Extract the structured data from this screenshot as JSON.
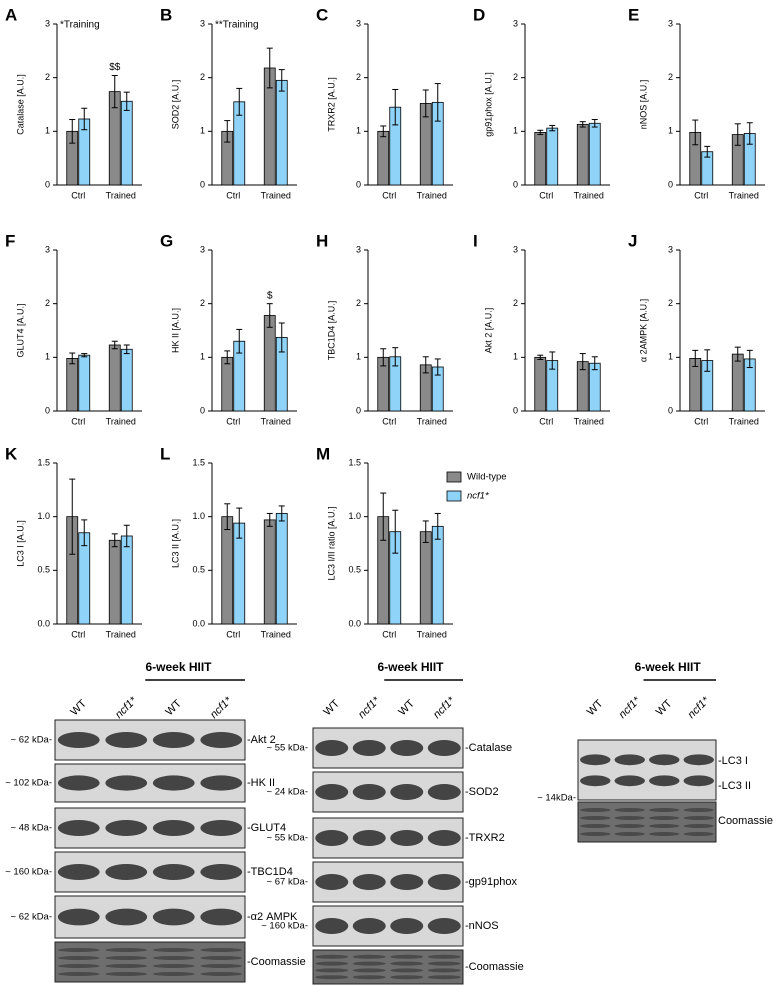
{
  "chart_data": [
    {
      "type": "bar",
      "panel": "A",
      "ylabel": "Catalase [A.U.]",
      "annotation": "*Training",
      "bar_annotation": "$$",
      "categories": [
        "Ctrl",
        "Trained"
      ],
      "ylim": [
        0,
        3
      ],
      "yticks": [
        0,
        1,
        2,
        3
      ],
      "series": [
        {
          "color": "#8a8a8a",
          "values": [
            1.0,
            1.74
          ],
          "errors": [
            0.22,
            0.3
          ]
        },
        {
          "color": "#8fd3f8",
          "values": [
            1.23,
            1.56
          ],
          "errors": [
            0.2,
            0.17
          ]
        }
      ]
    },
    {
      "type": "bar",
      "panel": "B",
      "ylabel": "SOD2 [A.U.]",
      "annotation": "**Training",
      "categories": [
        "Ctrl",
        "Trained"
      ],
      "ylim": [
        0,
        3
      ],
      "yticks": [
        0,
        1,
        2,
        3
      ],
      "series": [
        {
          "color": "#8a8a8a",
          "values": [
            1.0,
            2.18
          ],
          "errors": [
            0.2,
            0.37
          ]
        },
        {
          "color": "#8fd3f8",
          "values": [
            1.55,
            1.95
          ],
          "errors": [
            0.25,
            0.2
          ]
        }
      ]
    },
    {
      "type": "bar",
      "panel": "C",
      "ylabel": "TRXR2 [A.U.]",
      "categories": [
        "Ctrl",
        "Trained"
      ],
      "ylim": [
        0,
        3
      ],
      "yticks": [
        0,
        1,
        2,
        3
      ],
      "series": [
        {
          "color": "#8a8a8a",
          "values": [
            1.0,
            1.52
          ],
          "errors": [
            0.1,
            0.25
          ]
        },
        {
          "color": "#8fd3f8",
          "values": [
            1.45,
            1.54
          ],
          "errors": [
            0.33,
            0.35
          ]
        }
      ]
    },
    {
      "type": "bar",
      "panel": "D",
      "ylabel": "gp91phox [A.U.]",
      "categories": [
        "Ctrl",
        "Trained"
      ],
      "ylim": [
        0,
        3
      ],
      "yticks": [
        0,
        1,
        2,
        3
      ],
      "series": [
        {
          "color": "#8a8a8a",
          "values": [
            0.98,
            1.13
          ],
          "errors": [
            0.04,
            0.05
          ]
        },
        {
          "color": "#8fd3f8",
          "values": [
            1.06,
            1.15
          ],
          "errors": [
            0.05,
            0.07
          ]
        }
      ]
    },
    {
      "type": "bar",
      "panel": "E",
      "ylabel": "nNOS [A.U.]",
      "categories": [
        "Ctrl",
        "Trained"
      ],
      "ylim": [
        0,
        3
      ],
      "yticks": [
        0,
        1,
        2,
        3
      ],
      "series": [
        {
          "color": "#8a8a8a",
          "values": [
            0.98,
            0.94
          ],
          "errors": [
            0.23,
            0.2
          ]
        },
        {
          "color": "#8fd3f8",
          "values": [
            0.62,
            0.96
          ],
          "errors": [
            0.1,
            0.2
          ]
        }
      ]
    },
    {
      "type": "bar",
      "panel": "F",
      "ylabel": "GLUT4 [A.U.]",
      "categories": [
        "Ctrl",
        "Trained"
      ],
      "ylim": [
        0,
        3
      ],
      "yticks": [
        0,
        1,
        2,
        3
      ],
      "series": [
        {
          "color": "#8a8a8a",
          "values": [
            0.98,
            1.23
          ],
          "errors": [
            0.1,
            0.07
          ]
        },
        {
          "color": "#8fd3f8",
          "values": [
            1.04,
            1.15
          ],
          "errors": [
            0.03,
            0.08
          ]
        }
      ]
    },
    {
      "type": "bar",
      "panel": "G",
      "ylabel": "HK II [A.U.]",
      "bar_annotation": "$",
      "categories": [
        "Ctrl",
        "Trained"
      ],
      "ylim": [
        0,
        3
      ],
      "yticks": [
        0,
        1,
        2,
        3
      ],
      "series": [
        {
          "color": "#8a8a8a",
          "values": [
            1.0,
            1.78
          ],
          "errors": [
            0.12,
            0.22
          ]
        },
        {
          "color": "#8fd3f8",
          "values": [
            1.3,
            1.37
          ],
          "errors": [
            0.22,
            0.27
          ]
        }
      ]
    },
    {
      "type": "bar",
      "panel": "H",
      "ylabel": "TBC1D4 [A.U.]",
      "categories": [
        "Ctrl",
        "Trained"
      ],
      "ylim": [
        0,
        3
      ],
      "yticks": [
        0,
        1,
        2,
        3
      ],
      "series": [
        {
          "color": "#8a8a8a",
          "values": [
            1.0,
            0.86
          ],
          "errors": [
            0.16,
            0.15
          ]
        },
        {
          "color": "#8fd3f8",
          "values": [
            1.01,
            0.82
          ],
          "errors": [
            0.17,
            0.15
          ]
        }
      ]
    },
    {
      "type": "bar",
      "panel": "I",
      "ylabel": "Akt 2 [A.U.]",
      "categories": [
        "Ctrl",
        "Trained"
      ],
      "ylim": [
        0,
        3
      ],
      "yticks": [
        0,
        1,
        2,
        3
      ],
      "series": [
        {
          "color": "#8a8a8a",
          "values": [
            1.0,
            0.92
          ],
          "errors": [
            0.04,
            0.15
          ]
        },
        {
          "color": "#8fd3f8",
          "values": [
            0.94,
            0.89
          ],
          "errors": [
            0.16,
            0.12
          ]
        }
      ]
    },
    {
      "type": "bar",
      "panel": "J",
      "ylabel": "α 2AMPK [A.U.]",
      "categories": [
        "Ctrl",
        "Trained"
      ],
      "ylim": [
        0,
        3
      ],
      "yticks": [
        0,
        1,
        2,
        3
      ],
      "series": [
        {
          "color": "#8a8a8a",
          "values": [
            0.98,
            1.06
          ],
          "errors": [
            0.15,
            0.13
          ]
        },
        {
          "color": "#8fd3f8",
          "values": [
            0.94,
            0.97
          ],
          "errors": [
            0.2,
            0.16
          ]
        }
      ]
    },
    {
      "type": "bar",
      "panel": "K",
      "ylabel": "LC3 I [A.U.]",
      "categories": [
        "Ctrl",
        "Trained"
      ],
      "ylim": [
        0,
        1.5
      ],
      "yticks": [
        {
          "value": 0,
          "label": "0.0"
        },
        {
          "value": 0.5,
          "label": "0.5"
        },
        {
          "value": 1,
          "label": "1.0"
        },
        {
          "value": 1.5,
          "label": "1.5"
        }
      ],
      "series": [
        {
          "color": "#8a8a8a",
          "values": [
            1.0,
            0.78
          ],
          "errors": [
            0.35,
            0.06
          ]
        },
        {
          "color": "#8fd3f8",
          "values": [
            0.85,
            0.82
          ],
          "errors": [
            0.12,
            0.1
          ]
        }
      ]
    },
    {
      "type": "bar",
      "panel": "L",
      "ylabel": "LC3 II [A.U.]",
      "categories": [
        "Ctrl",
        "Trained"
      ],
      "ylim": [
        0,
        1.5
      ],
      "yticks": [
        {
          "value": 0,
          "label": "0.0"
        },
        {
          "value": 0.5,
          "label": "0.5"
        },
        {
          "value": 1,
          "label": "1.0"
        },
        {
          "value": 1.5,
          "label": "1.5"
        }
      ],
      "series": [
        {
          "color": "#8a8a8a",
          "values": [
            1.0,
            0.97
          ],
          "errors": [
            0.12,
            0.06
          ]
        },
        {
          "color": "#8fd3f8",
          "values": [
            0.94,
            1.03
          ],
          "errors": [
            0.14,
            0.07
          ]
        }
      ]
    },
    {
      "type": "bar",
      "panel": "M",
      "ylabel": "LC3 I/II ratio [A.U.]",
      "categories": [
        "Ctrl",
        "Trained"
      ],
      "ylim": [
        0,
        1.5
      ],
      "yticks": [
        {
          "value": 0,
          "label": "0.0"
        },
        {
          "value": 0.5,
          "label": "0.5"
        },
        {
          "value": 1,
          "label": "1.0"
        },
        {
          "value": 1.5,
          "label": "1.5"
        }
      ],
      "series": [
        {
          "color": "#8a8a8a",
          "values": [
            1.0,
            0.86
          ],
          "errors": [
            0.22,
            0.1
          ]
        },
        {
          "color": "#8fd3f8",
          "values": [
            0.86,
            0.91
          ],
          "errors": [
            0.2,
            0.12
          ]
        }
      ]
    }
  ],
  "legend": [
    {
      "name": "Wild-type",
      "color": "#8a8a8a"
    },
    {
      "name": "ncf1*",
      "color": "#8fd3f8"
    }
  ],
  "blots": [
    {
      "header": "6-week HIIT",
      "lanes": [
        "WT",
        "ncf1*",
        "WT",
        "ncf1*"
      ],
      "rows": [
        {
          "kda": "~ 62 kDa-",
          "label": "-Akt 2"
        },
        {
          "kda": "~ 102 kDa-",
          "label": "-HK II"
        },
        {
          "kda": "~ 48 kDa-",
          "label": "-GLUT4"
        },
        {
          "kda": "~ 160 kDa-",
          "label": "-TBC1D4"
        },
        {
          "kda": "~ 62 kDa-",
          "label": "-α2 AMPK"
        },
        {
          "label": "-Coomassie"
        }
      ]
    },
    {
      "header": "6-week HIIT",
      "lanes": [
        "WT",
        "ncf1*",
        "WT",
        "ncf1*"
      ],
      "rows": [
        {
          "kda": "~ 55 kDa-",
          "label": "-Catalase"
        },
        {
          "kda": "~ 24 kDa-",
          "label": "-SOD2"
        },
        {
          "kda": "~ 55 kDa-",
          "label": "-TRXR2"
        },
        {
          "kda": "~ 67 kDa-",
          "label": "-gp91phox"
        },
        {
          "kda": "~ 160 kDa-",
          "label": "-nNOS"
        },
        {
          "label": "-Coomassie"
        }
      ]
    },
    {
      "header": "6-week HIIT",
      "lanes": [
        "WT",
        "ncf1*",
        "WT",
        "ncf1*"
      ],
      "rows": [
        {
          "label": "-LC3 I"
        },
        {
          "kda": "~ 14kDa-",
          "label": "-LC3 II"
        },
        {
          "label": "Coomassie"
        }
      ]
    }
  ]
}
